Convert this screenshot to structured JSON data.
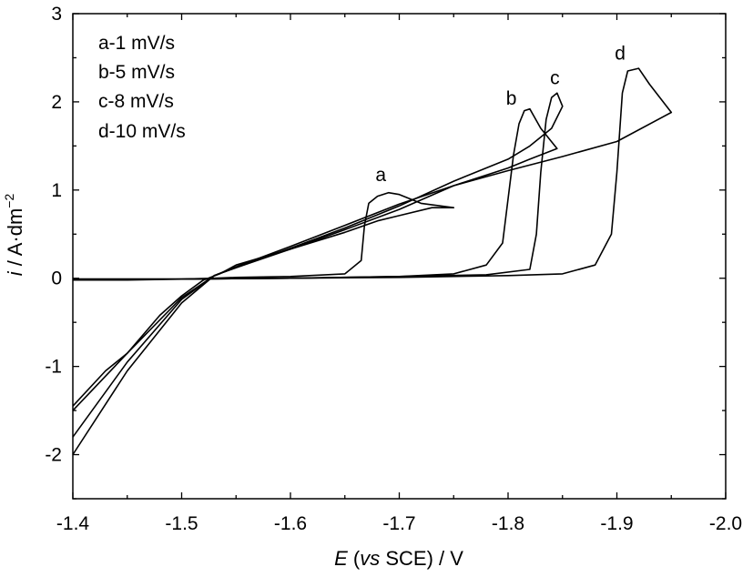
{
  "chart_data": {
    "type": "line",
    "xlabel": {
      "italic": "E",
      "mid": " (",
      "vs": "vs",
      "rest": " SCE) / V"
    },
    "ylabel": {
      "italic": "i",
      "rest": " / A·dm",
      "sup": "−2"
    },
    "xlim": [
      -1.4,
      -2.0
    ],
    "ylim": [
      -2.5,
      3
    ],
    "x_ticks": [
      -1.4,
      -1.5,
      -1.6,
      -1.7,
      -1.8,
      -1.9,
      -2.0
    ],
    "x_tick_labels": [
      "-1.4",
      "-1.5",
      "-1.6",
      "-1.7",
      "-1.8",
      "-1.9",
      "-2.0"
    ],
    "y_ticks": [
      -2,
      -1,
      0,
      1,
      2,
      3
    ],
    "y_tick_labels": [
      "-2",
      "-1",
      "0",
      "1",
      "2",
      "3"
    ],
    "legend": {
      "location": "top-left",
      "entries": [
        "a-1 mV/s",
        "b-5 mV/s",
        "c-8 mV/s",
        "d-10 mV/s"
      ]
    },
    "series": [
      {
        "id": "a",
        "label": "a",
        "x": [
          -1.4,
          -1.45,
          -1.5,
          -1.53,
          -1.55,
          -1.6,
          -1.65,
          -1.665,
          -1.668,
          -1.672,
          -1.68,
          -1.69,
          -1.7,
          -1.72,
          -1.75,
          -1.73,
          -1.7,
          -1.68,
          -1.65,
          -1.6,
          -1.55,
          -1.535,
          -1.52,
          -1.5,
          -1.48,
          -1.45,
          -1.43,
          -1.4
        ],
        "y": [
          -0.02,
          -0.02,
          -0.01,
          0.0,
          0.01,
          0.02,
          0.05,
          0.2,
          0.6,
          0.85,
          0.93,
          0.97,
          0.95,
          0.85,
          0.8,
          0.8,
          0.71,
          0.65,
          0.52,
          0.33,
          0.15,
          0.05,
          -0.02,
          -0.2,
          -0.42,
          -0.85,
          -1.05,
          -1.45
        ]
      },
      {
        "id": "b",
        "label": "b",
        "x": [
          -1.4,
          -1.5,
          -1.6,
          -1.7,
          -1.75,
          -1.78,
          -1.795,
          -1.8,
          -1.805,
          -1.81,
          -1.815,
          -1.82,
          -1.83,
          -1.845,
          -1.82,
          -1.8,
          -1.75,
          -1.7,
          -1.65,
          -1.6,
          -1.55,
          -1.53,
          -1.5,
          -1.45,
          -1.4
        ],
        "y": [
          -0.01,
          -0.01,
          0.0,
          0.02,
          0.05,
          0.15,
          0.4,
          0.9,
          1.4,
          1.75,
          1.9,
          1.92,
          1.7,
          1.47,
          1.35,
          1.25,
          1.05,
          0.78,
          0.55,
          0.33,
          0.12,
          0.03,
          -0.22,
          -0.85,
          -1.5
        ]
      },
      {
        "id": "c",
        "label": "c",
        "x": [
          -1.4,
          -1.5,
          -1.6,
          -1.7,
          -1.78,
          -1.82,
          -1.826,
          -1.83,
          -1.835,
          -1.84,
          -1.845,
          -1.85,
          -1.84,
          -1.82,
          -1.8,
          -1.75,
          -1.7,
          -1.65,
          -1.6,
          -1.55,
          -1.53,
          -1.5,
          -1.45,
          -1.4
        ],
        "y": [
          -0.01,
          -0.01,
          0.0,
          0.02,
          0.04,
          0.1,
          0.5,
          1.2,
          1.8,
          2.05,
          2.1,
          1.95,
          1.7,
          1.5,
          1.35,
          1.1,
          0.82,
          0.57,
          0.34,
          0.12,
          0.03,
          -0.24,
          -0.95,
          -1.8
        ]
      },
      {
        "id": "d",
        "label": "d",
        "x": [
          -1.4,
          -1.5,
          -1.6,
          -1.7,
          -1.8,
          -1.85,
          -1.88,
          -1.895,
          -1.9,
          -1.905,
          -1.91,
          -1.92,
          -1.93,
          -1.95,
          -1.9,
          -1.85,
          -1.8,
          -1.75,
          -1.7,
          -1.65,
          -1.6,
          -1.55,
          -1.53,
          -1.5,
          -1.45,
          -1.4
        ],
        "y": [
          -0.01,
          -0.01,
          0.0,
          0.01,
          0.03,
          0.05,
          0.15,
          0.5,
          1.2,
          2.1,
          2.35,
          2.38,
          2.2,
          1.88,
          1.55,
          1.38,
          1.22,
          1.05,
          0.84,
          0.6,
          0.36,
          0.13,
          0.03,
          -0.28,
          -1.05,
          -2.0
        ]
      }
    ],
    "curve_labels": [
      {
        "text": "a",
        "x": -1.683,
        "y": 1.1
      },
      {
        "text": "b",
        "x": -1.803,
        "y": 1.97
      },
      {
        "text": "c",
        "x": -1.843,
        "y": 2.2
      },
      {
        "text": "d",
        "x": -1.903,
        "y": 2.48
      }
    ]
  }
}
